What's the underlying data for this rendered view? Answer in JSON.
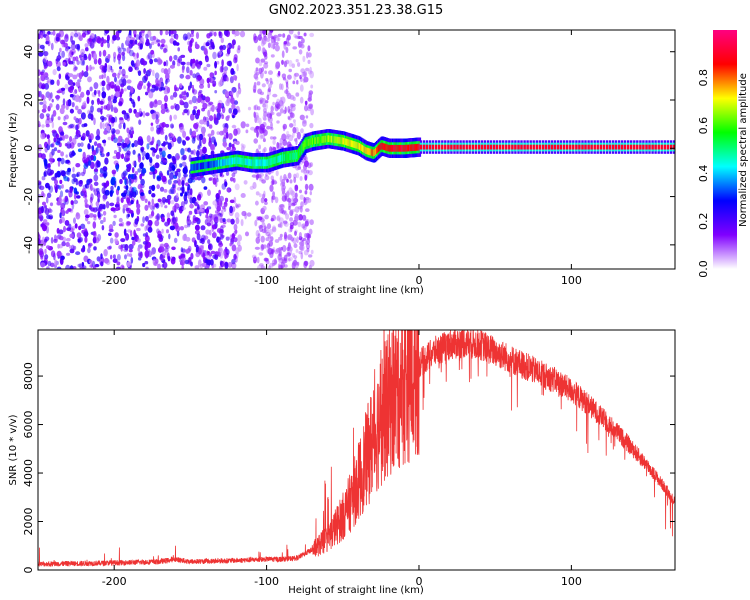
{
  "title": "GN02.2023.351.23.38.G15",
  "chart_data": [
    {
      "type": "heatmap",
      "xlabel": "Height of straight line (km)",
      "ylabel": "Frequency (Hz)",
      "xlim": [
        -250,
        168
      ],
      "ylim": [
        -50,
        49
      ],
      "xticks": [
        -200,
        -100,
        0,
        100
      ],
      "yticks": [
        -40,
        -20,
        0,
        20,
        40
      ],
      "colorbar": {
        "label": "Normalized spectral amplitude",
        "range": [
          0,
          1
        ],
        "ticks": [
          "0.0",
          "0.2",
          "0.4",
          "0.6",
          "0.8"
        ],
        "colormap": [
          "#ffffff",
          "#8000ff",
          "#0000ff",
          "#00ffff",
          "#00ff00",
          "#ffff00",
          "#ff0000",
          "#ff0080"
        ]
      },
      "signal_track": {
        "x": [
          -150,
          -140,
          -130,
          -120,
          -110,
          -100,
          -90,
          -80,
          -75,
          -70,
          -60,
          -50,
          -40,
          -35,
          -30,
          -25,
          -20,
          -10,
          0,
          50,
          100,
          168
        ],
        "frequency": [
          -8,
          -7,
          -6,
          -5,
          -6,
          -6,
          -4,
          -3,
          2,
          3,
          4,
          3,
          1,
          -1,
          -2,
          1,
          0,
          0,
          0.5,
          0.5,
          0.5,
          0.5
        ],
        "amplitude": [
          0.3,
          0.3,
          0.4,
          0.45,
          0.45,
          0.45,
          0.5,
          0.55,
          0.6,
          0.6,
          0.65,
          0.7,
          0.7,
          0.75,
          0.8,
          0.85,
          0.88,
          0.9,
          0.9,
          0.9,
          0.9,
          0.9
        ]
      },
      "noise_region": [
        -250,
        -80
      ]
    },
    {
      "type": "line",
      "xlabel": "Height of straight line (km)",
      "ylabel": "SNR (10 * v/v)",
      "xlim": [
        -250,
        168
      ],
      "ylim": [
        0,
        9900
      ],
      "xticks": [
        -200,
        -100,
        0,
        100
      ],
      "yticks": [
        0,
        2000,
        4000,
        6000,
        8000
      ],
      "color": "#ee3333",
      "series": [
        {
          "x": [
            -250,
            -200,
            -170,
            -160,
            -150,
            -120,
            -100,
            -90,
            -80,
            -70,
            -60,
            -50,
            -45,
            -40,
            -35,
            -30,
            -25,
            -20,
            -15,
            -10,
            -5,
            0,
            10,
            20,
            30,
            40,
            50,
            60,
            70,
            80,
            90,
            100,
            110,
            120,
            130,
            140,
            150,
            160,
            168
          ],
          "values": [
            200,
            250,
            300,
            400,
            300,
            350,
            400,
            400,
            450,
            800,
            1300,
            2200,
            2800,
            3600,
            4500,
            5400,
            6200,
            6800,
            7300,
            7700,
            8100,
            8500,
            9000,
            9300,
            9400,
            9300,
            9000,
            8700,
            8400,
            8100,
            7800,
            7400,
            6900,
            6300,
            5700,
            5000,
            4300,
            3500,
            2800
          ]
        }
      ]
    }
  ]
}
